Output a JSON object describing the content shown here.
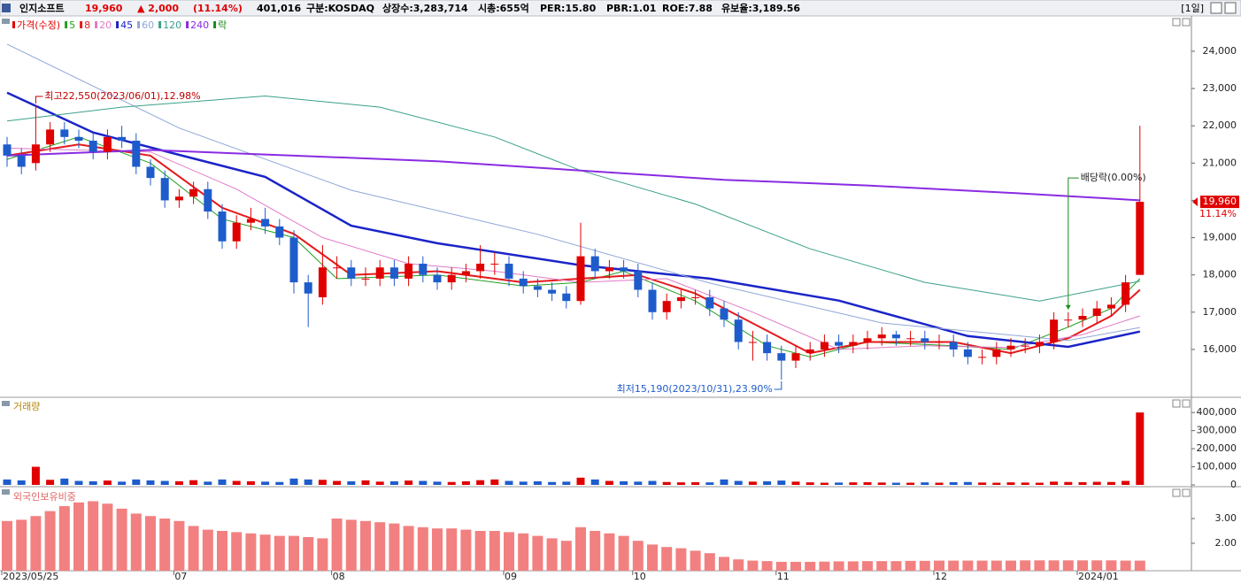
{
  "header": {
    "name": "인지소프트",
    "price": "19,960",
    "change": "▲ 2,000",
    "change_pct": "(11.14%)",
    "volume": "401,016",
    "market": "구분:KOSDAQ",
    "shares": "상장수:3,283,714",
    "cap": "시총:655억",
    "per": "PER:15.80",
    "pbr": "PBR:1.01",
    "roe": "ROE:7.88",
    "reserve": "유보율:3,189.56",
    "period": "[1일]"
  },
  "chart_data": [
    {
      "type": "candlestick",
      "price_name": "가격(수정)",
      "mark_name": "락",
      "mark_color": "#1a8a1a",
      "up_color": "#e00000",
      "down_color": "#1e5ccc",
      "categories": [
        "2023/05/25",
        null,
        null,
        null,
        null,
        null,
        null,
        null,
        null,
        null,
        null,
        null,
        "07",
        null,
        null,
        null,
        null,
        null,
        null,
        null,
        null,
        null,
        null,
        "08",
        null,
        null,
        null,
        null,
        null,
        null,
        null,
        null,
        null,
        null,
        null,
        "09",
        null,
        null,
        null,
        null,
        null,
        null,
        null,
        null,
        "10",
        null,
        null,
        null,
        null,
        null,
        null,
        null,
        null,
        null,
        "11",
        null,
        null,
        null,
        null,
        null,
        null,
        null,
        null,
        null,
        null,
        "12",
        null,
        null,
        null,
        null,
        null,
        null,
        null,
        null,
        null,
        "2024/01",
        null,
        null,
        null,
        null
      ],
      "open": [
        21500,
        21200,
        21000,
        21500,
        21900,
        21700,
        21600,
        21300,
        21700,
        21600,
        20900,
        20600,
        20000,
        20100,
        20300,
        19700,
        18900,
        19400,
        19500,
        19300,
        19000,
        17800,
        17400,
        18200,
        18200,
        17900,
        17900,
        18200,
        17900,
        18300,
        18000,
        17800,
        18000,
        18100,
        18300,
        18300,
        17900,
        17700,
        17600,
        17500,
        17300,
        18500,
        18100,
        18200,
        18100,
        17600,
        17000,
        17300,
        17400,
        17400,
        17100,
        16800,
        16200,
        16200,
        15900,
        15700,
        15900,
        16000,
        16200,
        16100,
        16200,
        16300,
        16400,
        16300,
        16300,
        16200,
        16200,
        16000,
        15800,
        15800,
        16000,
        16100,
        16100,
        16200,
        16800,
        16800,
        16900,
        17100,
        17200,
        18000
      ],
      "high": [
        21700,
        21400,
        22550,
        22100,
        22100,
        21900,
        21800,
        21900,
        22000,
        21800,
        21100,
        20800,
        20300,
        20500,
        20500,
        19900,
        19600,
        19800,
        19800,
        19500,
        19200,
        18000,
        18800,
        18500,
        18400,
        18200,
        18400,
        18400,
        18500,
        18500,
        18200,
        18200,
        18300,
        18800,
        18600,
        18500,
        18100,
        17900,
        17800,
        17700,
        19400,
        18700,
        18400,
        18400,
        18300,
        17800,
        17500,
        17600,
        17600,
        17600,
        17300,
        17000,
        16500,
        16400,
        16100,
        16100,
        16200,
        16400,
        16400,
        16400,
        16500,
        16600,
        16500,
        16500,
        16500,
        16400,
        16400,
        16200,
        16000,
        16200,
        16300,
        16300,
        16400,
        17000,
        17000,
        17100,
        17300,
        17400,
        18000,
        22000
      ],
      "low": [
        20900,
        20700,
        20800,
        21300,
        21500,
        21400,
        21100,
        21100,
        21400,
        20700,
        20400,
        19800,
        19800,
        19900,
        19500,
        18700,
        18700,
        19200,
        19100,
        18800,
        17500,
        16600,
        17200,
        17900,
        17700,
        17700,
        17700,
        17700,
        17700,
        17800,
        17600,
        17600,
        17800,
        17900,
        18000,
        17700,
        17500,
        17400,
        17300,
        17100,
        17200,
        17900,
        17900,
        17900,
        17400,
        16800,
        16800,
        17100,
        17200,
        16900,
        16600,
        16000,
        15700,
        15700,
        15190,
        15500,
        15700,
        15800,
        15900,
        15900,
        16000,
        16100,
        16100,
        16100,
        16000,
        16000,
        15800,
        15600,
        15600,
        15600,
        15800,
        15900,
        15900,
        16000,
        16600,
        16600,
        16700,
        16900,
        17000,
        18000
      ],
      "close": [
        21200,
        20900,
        21500,
        21900,
        21700,
        21600,
        21300,
        21700,
        21600,
        20900,
        20600,
        20000,
        20100,
        20300,
        19700,
        18900,
        19400,
        19500,
        19300,
        19000,
        17800,
        17500,
        18200,
        18200,
        17900,
        17900,
        18200,
        17900,
        18300,
        18000,
        17800,
        18000,
        18100,
        18300,
        18300,
        17900,
        17700,
        17600,
        17500,
        17300,
        18500,
        18100,
        18200,
        18100,
        17600,
        17000,
        17300,
        17400,
        17400,
        17100,
        16800,
        16200,
        16200,
        15900,
        15700,
        15900,
        16000,
        16200,
        16100,
        16200,
        16300,
        16400,
        16300,
        16300,
        16200,
        16200,
        16000,
        15800,
        15800,
        16000,
        16100,
        16100,
        16200,
        16800,
        16800,
        16900,
        17100,
        17200,
        17800,
        19960
      ],
      "series": [
        {
          "name": "5",
          "color": "#22a022",
          "width": 1,
          "x": [
            0,
            5,
            10,
            15,
            20,
            23,
            30,
            36,
            40,
            43,
            48,
            53,
            56,
            60,
            66,
            70,
            74,
            77,
            79
          ],
          "values": [
            21100,
            21700,
            21000,
            19500,
            19000,
            17900,
            18000,
            17700,
            17800,
            18100,
            17300,
            16100,
            15800,
            16200,
            16100,
            16000,
            16600,
            17100,
            17900
          ]
        },
        {
          "name": "8",
          "color": "#e41a1c",
          "width": 2,
          "x": [
            0,
            5,
            10,
            15,
            20,
            24,
            30,
            36,
            40,
            44,
            48,
            52,
            56,
            60,
            66,
            70,
            74,
            77,
            79
          ],
          "values": [
            21200,
            21500,
            21200,
            19800,
            19100,
            18000,
            18100,
            17800,
            17900,
            18000,
            17500,
            16700,
            15900,
            16200,
            16200,
            15900,
            16300,
            16900,
            17600
          ]
        },
        {
          "name": "20",
          "color": "#e07ac8",
          "width": 1,
          "x": [
            0,
            10,
            16,
            22,
            28,
            34,
            40,
            46,
            52,
            58,
            64,
            70,
            75,
            79
          ],
          "values": [
            21400,
            21300,
            20300,
            19000,
            18300,
            18100,
            17800,
            17900,
            17000,
            16000,
            16100,
            16050,
            16400,
            16900
          ]
        },
        {
          "name": "45",
          "color": "#1a24c8",
          "width": 2.5,
          "x": [
            0,
            6,
            12,
            18,
            24,
            30,
            40,
            49,
            58,
            67,
            74,
            79
          ],
          "values": [
            22890,
            21820,
            21220,
            20630,
            19320,
            18850,
            18260,
            17900,
            17310,
            16360,
            16070,
            16480
          ]
        },
        {
          "name": "60",
          "color": "#8fa6d8",
          "width": 1,
          "x": [
            0,
            12,
            24,
            37,
            49,
            61,
            74,
            79
          ],
          "values": [
            24190,
            21940,
            20270,
            19090,
            17780,
            16710,
            16240,
            16590
          ]
        },
        {
          "name": "120",
          "color": "#3aa08a",
          "width": 1,
          "x": [
            0,
            8,
            18,
            26,
            34,
            40,
            48,
            56,
            64,
            72,
            79
          ],
          "values": [
            22130,
            22500,
            22800,
            22500,
            21700,
            20800,
            19900,
            18700,
            17800,
            17300,
            17830
          ]
        },
        {
          "name": "240",
          "color": "#8a2be2",
          "width": 2,
          "x": [
            0,
            10,
            20,
            30,
            40,
            50,
            60,
            70,
            79
          ],
          "values": [
            21200,
            21350,
            21200,
            21050,
            20800,
            20550,
            20400,
            20200,
            20000
          ]
        }
      ],
      "annotations": [
        {
          "text": "최고22,550(2023/06/01),12.98%",
          "x": 2,
          "y": 22550
        },
        {
          "text": "최저15,190(2023/10/31),23.90%",
          "x": 54,
          "y": 15190
        },
        {
          "text": "배당락(0.00%)",
          "x": 74,
          "y": 20600
        }
      ],
      "current": {
        "value": 19960,
        "label": "19,960"
      },
      "current_change": "11.14%",
      "ylim": [
        14740,
        24900
      ],
      "yticks": [
        {
          "value": 16000,
          "label": "16,000"
        },
        {
          "value": 17000,
          "label": "17,000"
        },
        {
          "value": 18000,
          "label": "18,000"
        },
        {
          "value": 19000,
          "label": "19,000"
        },
        {
          "value": 20000,
          "label": "20,000"
        },
        {
          "value": 21000,
          "label": "21,000"
        },
        {
          "value": 22000,
          "label": "22,000"
        },
        {
          "value": 23000,
          "label": "23,000"
        },
        {
          "value": 24000,
          "label": "24,000"
        }
      ]
    },
    {
      "type": "volume",
      "title": "거래량",
      "title_color": "#b8860b",
      "values": [
        30000,
        25000,
        100000,
        28000,
        35000,
        22000,
        20000,
        24000,
        18000,
        30000,
        25000,
        22000,
        20000,
        26000,
        18000,
        30000,
        22000,
        20000,
        18000,
        16000,
        35000,
        30000,
        28000,
        22000,
        20000,
        25000,
        18000,
        20000,
        24000,
        22000,
        18000,
        16000,
        20000,
        26000,
        30000,
        22000,
        18000,
        20000,
        16000,
        18000,
        40000,
        30000,
        22000,
        20000,
        18000,
        22000,
        16000,
        14000,
        15000,
        14000,
        30000,
        22000,
        18000,
        20000,
        24000,
        18000,
        14000,
        12000,
        13000,
        14000,
        15000,
        13000,
        12000,
        12000,
        14000,
        12000,
        15000,
        16000,
        13000,
        12000,
        14000,
        13000,
        12000,
        18000,
        16000,
        15000,
        17000,
        16000,
        22000,
        400000
      ],
      "ylim": [
        0,
        440000
      ],
      "yticks": [
        0,
        {
          "value": 100000,
          "label": "100,000"
        },
        {
          "value": 200000,
          "label": "200,000"
        },
        {
          "value": 300000,
          "label": "300,000"
        },
        {
          "value": 400000,
          "label": "400,000"
        }
      ]
    },
    {
      "type": "bar",
      "title": "외국인보유비중",
      "title_color": "#e06666",
      "color": "#f28080",
      "values": [
        2.9,
        2.95,
        3.1,
        3.3,
        3.5,
        3.65,
        3.7,
        3.6,
        3.4,
        3.2,
        3.1,
        3.0,
        2.9,
        2.7,
        2.55,
        2.5,
        2.45,
        2.4,
        2.35,
        2.3,
        2.3,
        2.25,
        2.2,
        3.0,
        2.95,
        2.9,
        2.85,
        2.8,
        2.7,
        2.65,
        2.6,
        2.6,
        2.55,
        2.5,
        2.5,
        2.45,
        2.4,
        2.3,
        2.2,
        2.1,
        2.65,
        2.5,
        2.4,
        2.3,
        2.1,
        1.95,
        1.85,
        1.8,
        1.7,
        1.6,
        1.45,
        1.35,
        1.3,
        1.28,
        1.25,
        1.25,
        1.25,
        1.26,
        1.27,
        1.27,
        1.28,
        1.28,
        1.28,
        1.29,
        1.29,
        1.3,
        1.3,
        1.3,
        1.3,
        1.3,
        1.3,
        1.31,
        1.31,
        1.31,
        1.31,
        1.31,
        1.31,
        1.31,
        1.3,
        1.3
      ],
      "ylim": [
        1.07,
        3.93
      ],
      "yticks": [
        {
          "value": 2,
          "label": "2.00"
        },
        {
          "value": 3,
          "label": "3.00"
        }
      ]
    }
  ]
}
